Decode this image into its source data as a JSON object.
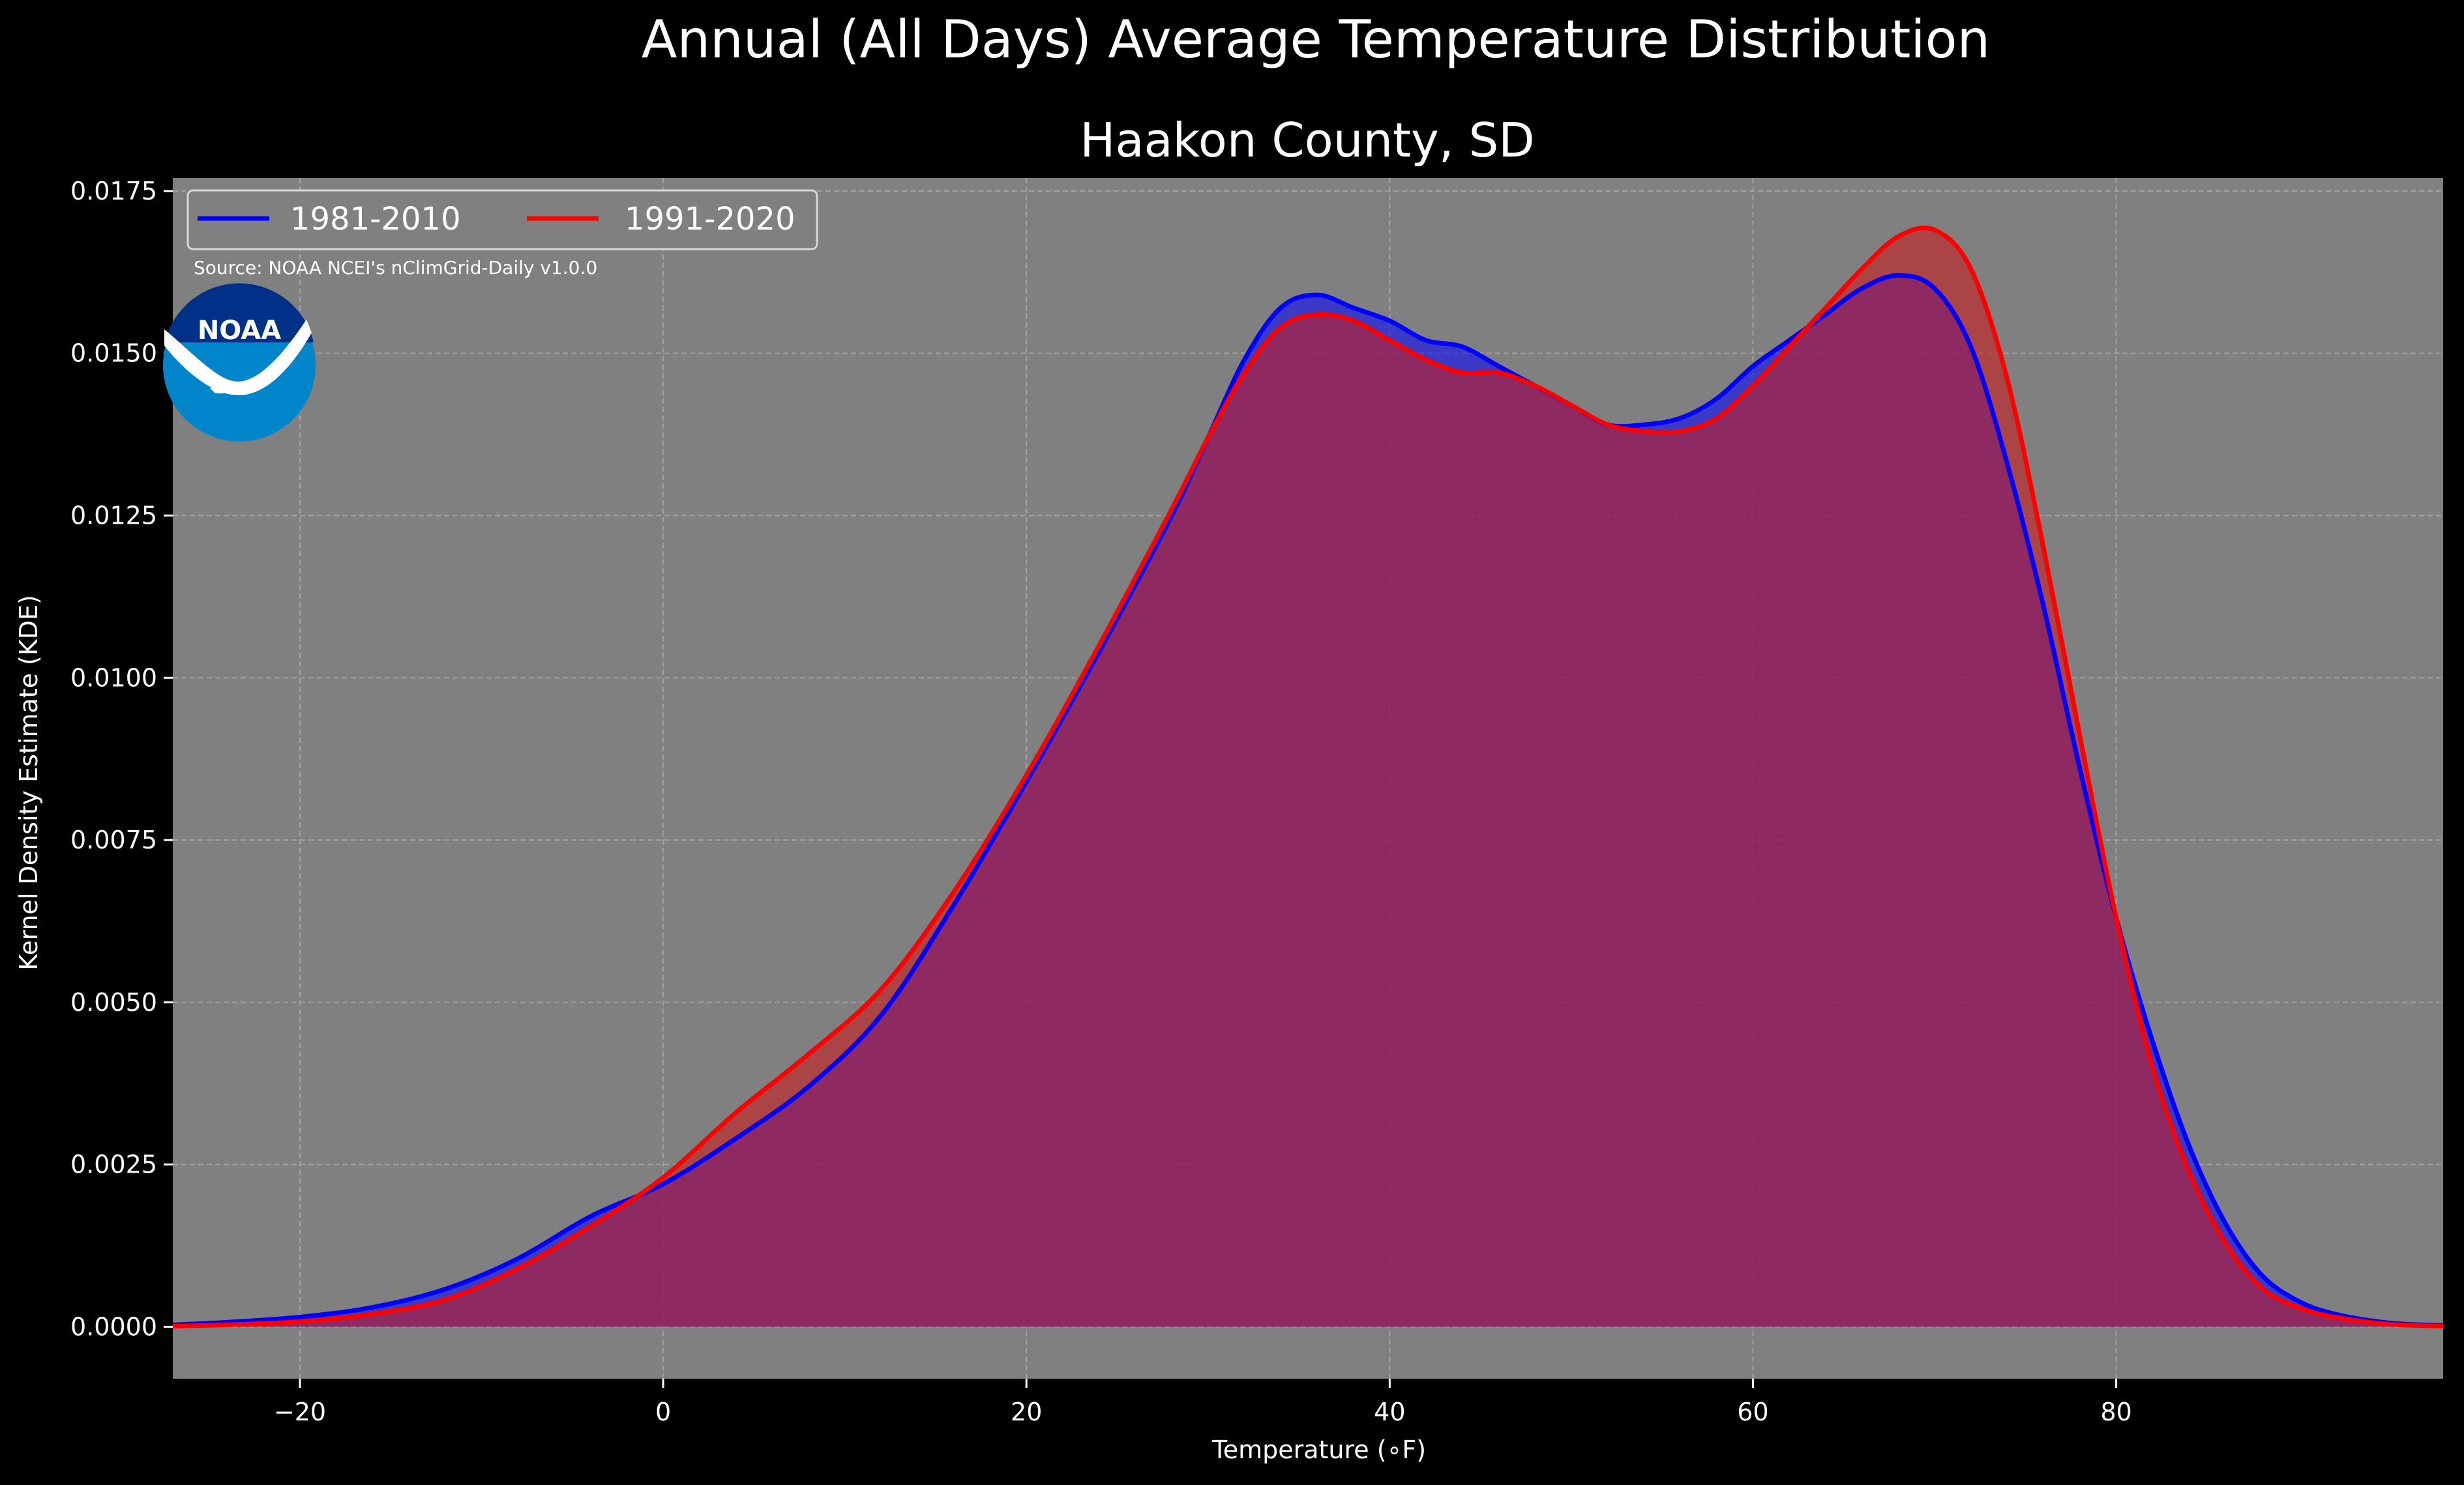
{
  "chart_data": {
    "type": "area",
    "title": "Annual (All Days) Average Temperature Distribution",
    "subtitle": "Haakon County, SD",
    "xlabel": "Temperature ($^\\circ$F)",
    "xlabel_display": "Temperature (∘F)",
    "ylabel": "Kernel Density Estimate (KDE)",
    "xlim": [
      -27,
      98
    ],
    "ylim": [
      -0.0008,
      0.0177
    ],
    "xticks": [
      -20,
      0,
      20,
      40,
      60,
      80
    ],
    "xtick_labels": [
      "−20",
      "0",
      "20",
      "40",
      "60",
      "80"
    ],
    "yticks": [
      0.0,
      0.0025,
      0.005,
      0.0075,
      0.01,
      0.0125,
      0.015,
      0.0175
    ],
    "ytick_labels": [
      "0.0000",
      "0.0025",
      "0.0050",
      "0.0075",
      "0.0100",
      "0.0125",
      "0.0150",
      "0.0175"
    ],
    "grid": true,
    "legend_position": "top-left",
    "annotation": "Source: NOAA NCEI's nClimGrid-Daily v1.0.0",
    "logo_text": "NOAA",
    "colors": {
      "background": "#000000",
      "plot_background": "#808080",
      "grid": "#b0b0b0",
      "text": "#ffffff",
      "logo_outer": "#0085ca",
      "logo_inner": "#003087"
    },
    "series": [
      {
        "name": "1981-2010",
        "color": "#0000ff",
        "fill": "#0000ff",
        "x": [
          -27,
          -24,
          -20,
          -16,
          -12,
          -8,
          -4,
          0,
          4,
          8,
          12,
          16,
          20,
          24,
          28,
          30,
          32,
          34,
          36,
          38,
          40,
          42,
          44,
          46,
          48,
          50,
          52,
          54,
          56,
          58,
          60,
          62,
          64,
          66,
          68,
          70,
          72,
          74,
          76,
          78,
          80,
          82,
          84,
          86,
          88,
          90,
          92,
          95,
          98
        ],
        "y": [
          3e-05,
          7e-05,
          0.00015,
          0.0003,
          0.00058,
          0.00105,
          0.0017,
          0.0022,
          0.0029,
          0.0037,
          0.0048,
          0.0065,
          0.0084,
          0.0104,
          0.0125,
          0.0137,
          0.0149,
          0.0157,
          0.0159,
          0.0157,
          0.0155,
          0.0152,
          0.0151,
          0.0148,
          0.0145,
          0.0142,
          0.0139,
          0.0139,
          0.014,
          0.0143,
          0.0148,
          0.0152,
          0.0156,
          0.016,
          0.0162,
          0.016,
          0.0151,
          0.0133,
          0.0111,
          0.0086,
          0.0063,
          0.0044,
          0.0028,
          0.0016,
          0.0008,
          0.0004,
          0.0002,
          6e-05,
          2e-05
        ]
      },
      {
        "name": "1991-2020",
        "color": "#ff0000",
        "fill": "#c81e1e",
        "x": [
          -27,
          -24,
          -20,
          -16,
          -12,
          -8,
          -4,
          0,
          4,
          8,
          12,
          16,
          20,
          24,
          28,
          30,
          32,
          34,
          36,
          38,
          40,
          42,
          44,
          46,
          48,
          50,
          52,
          54,
          56,
          58,
          60,
          62,
          64,
          66,
          68,
          70,
          72,
          74,
          76,
          78,
          80,
          82,
          84,
          86,
          88,
          90,
          92,
          95,
          98
        ],
        "y": [
          1e-05,
          3e-05,
          8e-05,
          0.0002,
          0.00042,
          0.0009,
          0.00155,
          0.0023,
          0.0033,
          0.0042,
          0.0052,
          0.0067,
          0.0085,
          0.0105,
          0.0126,
          0.0137,
          0.0147,
          0.0154,
          0.0156,
          0.0155,
          0.0152,
          0.0149,
          0.0147,
          0.0147,
          0.0145,
          0.0142,
          0.0139,
          0.0138,
          0.0138,
          0.014,
          0.0145,
          0.0151,
          0.0157,
          0.0163,
          0.0168,
          0.0169,
          0.0163,
          0.0146,
          0.012,
          0.0091,
          0.0063,
          0.004,
          0.0024,
          0.0013,
          0.0006,
          0.0003,
          0.00015,
          4e-05,
          1e-05
        ]
      }
    ]
  }
}
